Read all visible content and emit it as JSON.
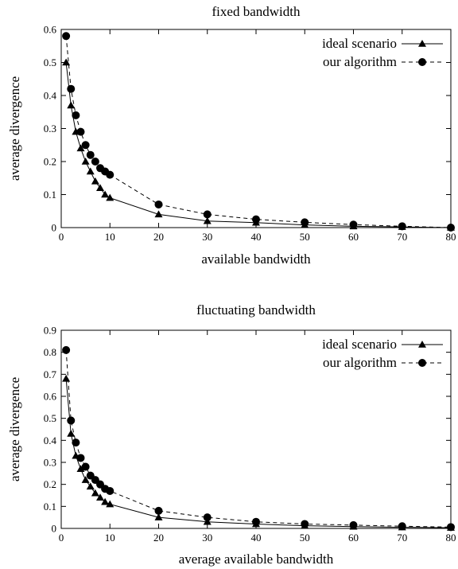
{
  "chart_data": [
    {
      "type": "line",
      "title": "fixed bandwidth",
      "xlabel": "available bandwidth",
      "ylabel": "average divergence",
      "xlim": [
        0,
        80
      ],
      "ylim": [
        0,
        0.6
      ],
      "xticks": [
        0,
        10,
        20,
        30,
        40,
        50,
        60,
        70,
        80
      ],
      "yticks": [
        0,
        0.1,
        0.2,
        0.3,
        0.4,
        0.5,
        0.6
      ],
      "legend_position": "top-right",
      "series": [
        {
          "name": "ideal scenario",
          "marker": "triangle",
          "dash": "solid",
          "x": [
            1,
            2,
            3,
            4,
            5,
            6,
            7,
            8,
            9,
            10,
            20,
            30,
            40,
            50,
            60,
            70,
            80
          ],
          "y": [
            0.5,
            0.37,
            0.29,
            0.24,
            0.2,
            0.17,
            0.14,
            0.12,
            0.1,
            0.09,
            0.04,
            0.02,
            0.015,
            0.008,
            0.004,
            0.002,
            0.0
          ]
        },
        {
          "name": "our algorithm",
          "marker": "circle",
          "dash": "dashed",
          "x": [
            1,
            2,
            3,
            4,
            5,
            6,
            7,
            8,
            9,
            10,
            20,
            30,
            40,
            50,
            60,
            70,
            80
          ],
          "y": [
            0.58,
            0.42,
            0.34,
            0.29,
            0.25,
            0.22,
            0.2,
            0.18,
            0.17,
            0.16,
            0.07,
            0.04,
            0.025,
            0.016,
            0.009,
            0.004,
            0.0
          ]
        }
      ]
    },
    {
      "type": "line",
      "title": "fluctuating bandwidth",
      "xlabel": "average available bandwidth",
      "ylabel": "average divergence",
      "xlim": [
        0,
        80
      ],
      "ylim": [
        0,
        0.9
      ],
      "xticks": [
        0,
        10,
        20,
        30,
        40,
        50,
        60,
        70,
        80
      ],
      "yticks": [
        0,
        0.1,
        0.2,
        0.3,
        0.4,
        0.5,
        0.6,
        0.7,
        0.8,
        0.9
      ],
      "legend_position": "top-right",
      "series": [
        {
          "name": "ideal scenario",
          "marker": "triangle",
          "dash": "solid",
          "x": [
            1,
            2,
            3,
            4,
            5,
            6,
            7,
            8,
            9,
            10,
            20,
            30,
            40,
            50,
            60,
            70,
            80
          ],
          "y": [
            0.68,
            0.43,
            0.33,
            0.27,
            0.22,
            0.19,
            0.16,
            0.14,
            0.12,
            0.11,
            0.05,
            0.03,
            0.02,
            0.012,
            0.008,
            0.005,
            0.003
          ]
        },
        {
          "name": "our algorithm",
          "marker": "circle",
          "dash": "dashed",
          "x": [
            1,
            2,
            3,
            4,
            5,
            6,
            7,
            8,
            9,
            10,
            20,
            30,
            40,
            50,
            60,
            70,
            80
          ],
          "y": [
            0.81,
            0.49,
            0.39,
            0.32,
            0.28,
            0.24,
            0.22,
            0.2,
            0.18,
            0.17,
            0.08,
            0.05,
            0.03,
            0.02,
            0.015,
            0.01,
            0.006
          ]
        }
      ]
    }
  ]
}
